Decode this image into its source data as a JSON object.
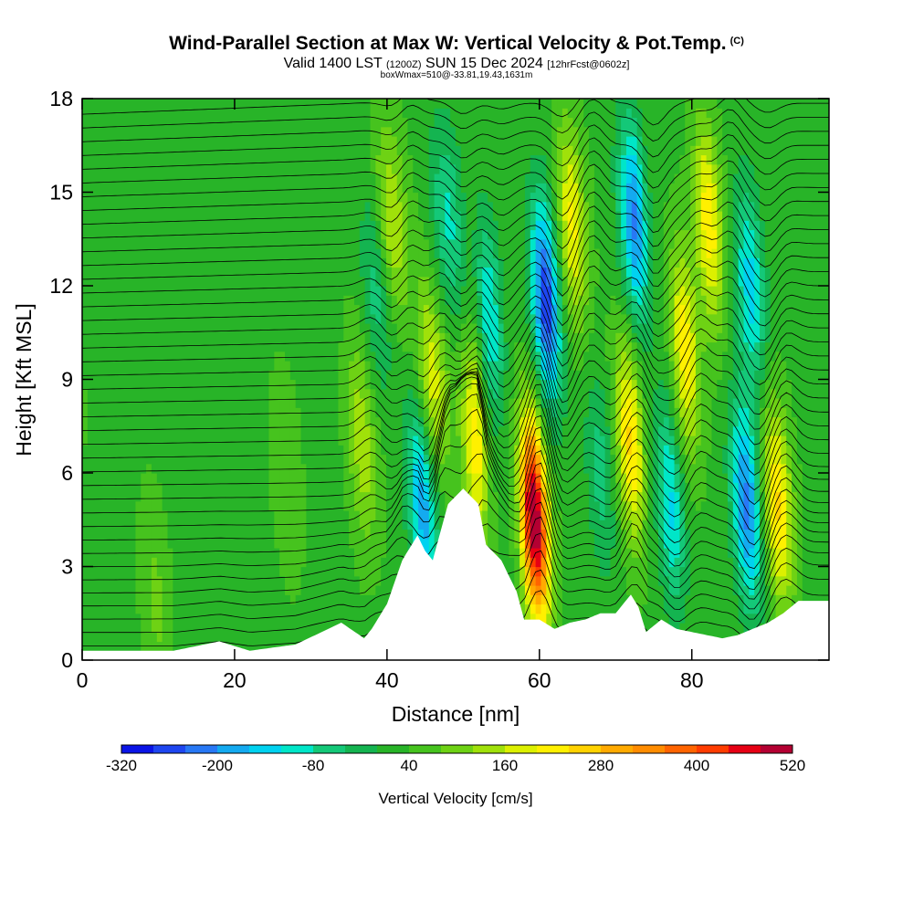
{
  "header": {
    "title": "Wind-Parallel Section at Max W: Vertical Velocity & Pot.Temp.",
    "copyright_mark": "(C)",
    "subtitle_valid": "Valid 1400 LST",
    "subtitle_z": "(1200Z)",
    "subtitle_date": "SUN 15 Dec 2024",
    "subtitle_fcst": "[12hrFcst@0602z]",
    "boxline": "boxWmax=510@-33.81,19.43,1631m"
  },
  "chart_data": {
    "type": "heatmap",
    "xlabel": "Distance [nm]",
    "ylabel": "Height [Kft MSL]",
    "xlim": [
      0,
      98
    ],
    "ylim": [
      0,
      18
    ],
    "xticks": [
      0,
      20,
      40,
      60,
      80
    ],
    "yticks": [
      0,
      3,
      6,
      9,
      12,
      15,
      18
    ],
    "grid": false,
    "colorbar": {
      "label": "Vertical Velocity [cm/s]",
      "tick_labels": [
        "-320",
        "-200",
        "-80",
        "40",
        "160",
        "280",
        "400",
        "520"
      ],
      "levels": [
        -320,
        -280,
        -240,
        -200,
        -160,
        -120,
        -80,
        -40,
        0,
        40,
        80,
        120,
        160,
        200,
        240,
        280,
        320,
        360,
        400,
        440,
        480,
        520
      ],
      "colors": [
        "#0a14e6",
        "#1e46f0",
        "#2878f5",
        "#14aaf0",
        "#00d2f0",
        "#00e6c8",
        "#14c878",
        "#14b450",
        "#28b428",
        "#46c31e",
        "#6ed214",
        "#a0e10a",
        "#dcf000",
        "#fff000",
        "#ffd200",
        "#ffaa00",
        "#ff8c00",
        "#ff6400",
        "#ff3c00",
        "#e60014",
        "#b40032"
      ]
    },
    "vertical_velocity_max": {
      "value": 510,
      "units": "cm/s",
      "distance_nm": 60,
      "height_kft": 4.5
    },
    "terrain_profile": {
      "x": [
        0,
        12,
        18,
        22,
        28,
        34,
        37,
        38,
        40,
        42,
        44,
        45,
        46,
        48,
        50,
        52,
        53,
        55,
        57,
        58,
        60,
        62,
        64,
        66,
        68,
        70,
        71,
        72,
        73,
        74,
        76,
        78,
        80,
        82,
        84,
        86,
        88,
        90,
        92,
        94,
        98
      ],
      "y": [
        0.3,
        0.3,
        0.6,
        0.3,
        0.5,
        1.2,
        0.7,
        1.0,
        1.8,
        3.2,
        4.0,
        3.5,
        3.2,
        5.0,
        5.5,
        5.0,
        3.7,
        3.2,
        2.2,
        1.3,
        1.3,
        1.0,
        1.2,
        1.3,
        1.5,
        1.5,
        1.8,
        2.1,
        1.7,
        0.9,
        1.3,
        1.0,
        0.9,
        0.8,
        0.7,
        0.8,
        1.0,
        1.2,
        1.5,
        1.9,
        1.9
      ]
    },
    "velocity_features": [
      {
        "x": 0,
        "y": 9,
        "w": 40
      },
      {
        "x": 10,
        "y": 2,
        "w": 60
      },
      {
        "x": 28,
        "y": 6,
        "w": 50
      },
      {
        "x": 38,
        "y": 7,
        "w": 120
      },
      {
        "x": 41,
        "y": 12,
        "w": -100
      },
      {
        "x": 43,
        "y": 14,
        "w": 140
      },
      {
        "x": 45,
        "y": 5,
        "w": -220
      },
      {
        "x": 47,
        "y": 9,
        "w": 160
      },
      {
        "x": 50,
        "y": 14,
        "w": -120
      },
      {
        "x": 52,
        "y": 7,
        "w": 200
      },
      {
        "x": 55,
        "y": 11,
        "w": -150
      },
      {
        "x": 60,
        "y": 4.5,
        "w": 510
      },
      {
        "x": 63,
        "y": 11.5,
        "w": -300
      },
      {
        "x": 67,
        "y": 14,
        "w": 180
      },
      {
        "x": 69,
        "y": 6,
        "w": -90
      },
      {
        "x": 73,
        "y": 7,
        "w": 220
      },
      {
        "x": 75,
        "y": 14,
        "w": -240
      },
      {
        "x": 78,
        "y": 5,
        "w": -160
      },
      {
        "x": 81,
        "y": 10,
        "w": 200
      },
      {
        "x": 85,
        "y": 14,
        "w": 200
      },
      {
        "x": 88,
        "y": 5,
        "w": -250
      },
      {
        "x": 90,
        "y": 12,
        "w": -170
      },
      {
        "x": 92,
        "y": 5,
        "w": 220
      }
    ]
  }
}
